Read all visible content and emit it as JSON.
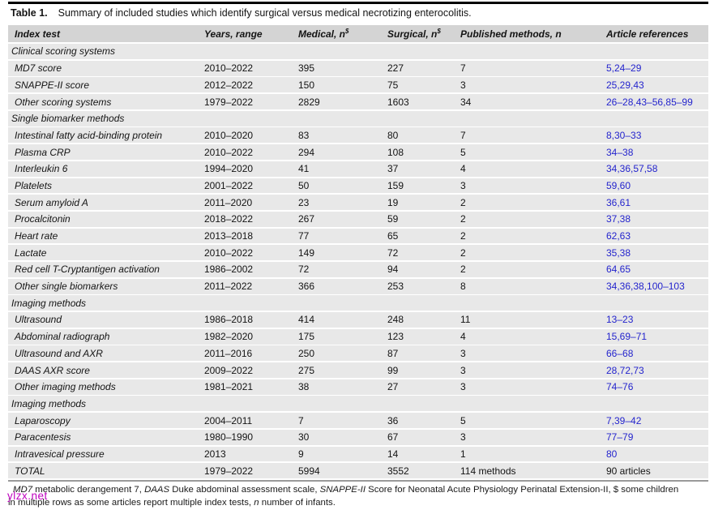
{
  "page": {
    "title_label": "Table 1.",
    "title_text": "Summary of included studies which identify surgical versus medical necrotizing enterocolitis.",
    "watermark": "ylzx.net"
  },
  "colors": {
    "header_bg": "#d4d4d4",
    "row_bg": "#e8e8e8",
    "reference_link_blue": "#2424cd",
    "watermark_magenta": "#bf00bf"
  },
  "table": {
    "headers": [
      {
        "label": "Index test",
        "sup": ""
      },
      {
        "label": "Years, range",
        "sup": ""
      },
      {
        "label": "Medical, n",
        "sup": "$"
      },
      {
        "label": "Surgical, n",
        "sup": "$"
      },
      {
        "label": "Published methods, n",
        "sup": ""
      },
      {
        "label": "Article references",
        "sup": ""
      }
    ],
    "rows": [
      {
        "type": "section",
        "label": "Clinical scoring systems"
      },
      {
        "type": "data",
        "name": "MD7 score",
        "years": "2010–2022",
        "medical": "395",
        "surgical": "227",
        "methods": "7",
        "refs": "5,24–29"
      },
      {
        "type": "data",
        "name": "SNAPPE-II score",
        "years": "2012–2022",
        "medical": "150",
        "surgical": "75",
        "methods": "3",
        "refs": "25,29,43"
      },
      {
        "type": "data",
        "name": "Other scoring systems",
        "years": "1979–2022",
        "medical": "2829",
        "surgical": "1603",
        "methods": "34",
        "refs": "26–28,43–56,85–99"
      },
      {
        "type": "section",
        "label": "Single biomarker methods"
      },
      {
        "type": "data",
        "name": "Intestinal fatty acid-binding protein",
        "years": "2010–2020",
        "medical": "83",
        "surgical": "80",
        "methods": "7",
        "refs": "8,30–33"
      },
      {
        "type": "data",
        "name": "Plasma CRP",
        "years": "2010–2022",
        "medical": "294",
        "surgical": "108",
        "methods": "5",
        "refs": "34–38"
      },
      {
        "type": "data",
        "name": "Interleukin 6",
        "years": "1994–2020",
        "medical": "41",
        "surgical": "37",
        "methods": "4",
        "refs": "34,36,57,58"
      },
      {
        "type": "data",
        "name": "Platelets",
        "years": "2001–2022",
        "medical": "50",
        "surgical": "159",
        "methods": "3",
        "refs": "59,60"
      },
      {
        "type": "data",
        "name": "Serum amyloid A",
        "years": "2011–2020",
        "medical": "23",
        "surgical": "19",
        "methods": "2",
        "refs": "36,61"
      },
      {
        "type": "data",
        "name": "Procalcitonin",
        "years": "2018–2022",
        "medical": "267",
        "surgical": "59",
        "methods": "2",
        "refs": "37,38"
      },
      {
        "type": "data",
        "name": "Heart rate",
        "years": "2013–2018",
        "medical": "77",
        "surgical": "65",
        "methods": "2",
        "refs": "62,63"
      },
      {
        "type": "data",
        "name": "Lactate",
        "years": "2010–2022",
        "medical": "149",
        "surgical": "72",
        "methods": "2",
        "refs": "35,38"
      },
      {
        "type": "data",
        "name": "Red cell T-Cryptantigen activation",
        "years": "1986–2002",
        "medical": "72",
        "surgical": "94",
        "methods": "2",
        "refs": "64,65"
      },
      {
        "type": "data",
        "name": "Other single biomarkers",
        "years": "2011–2022",
        "medical": "366",
        "surgical": "253",
        "methods": "8",
        "refs": "34,36,38,100–103"
      },
      {
        "type": "section",
        "label": "Imaging methods"
      },
      {
        "type": "data",
        "name": "Ultrasound",
        "years": "1986–2018",
        "medical": "414",
        "surgical": "248",
        "methods": "11",
        "refs": "13–23"
      },
      {
        "type": "data",
        "name": "Abdominal radiograph",
        "years": "1982–2020",
        "medical": "175",
        "surgical": "123",
        "methods": "4",
        "refs": "15,69–71"
      },
      {
        "type": "data",
        "name": "Ultrasound and AXR",
        "years": "2011–2016",
        "medical": "250",
        "surgical": "87",
        "methods": "3",
        "refs": "66–68"
      },
      {
        "type": "data",
        "name": "DAAS AXR score",
        "years": "2009–2022",
        "medical": "275",
        "surgical": "99",
        "methods": "3",
        "refs": "28,72,73"
      },
      {
        "type": "data",
        "name": "Other imaging methods",
        "years": "1981–2021",
        "medical": "38",
        "surgical": "27",
        "methods": "3",
        "refs": "74–76"
      },
      {
        "type": "section",
        "label": "Imaging methods"
      },
      {
        "type": "data",
        "name": "Laparoscopy",
        "years": "2004–2011",
        "medical": "7",
        "surgical": "36",
        "methods": "5",
        "refs": "7,39–42"
      },
      {
        "type": "data",
        "name": "Paracentesis",
        "years": "1980–1990",
        "medical": "30",
        "surgical": "67",
        "methods": "3",
        "refs": "77–79"
      },
      {
        "type": "data",
        "name": "Intravesical pressure",
        "years": "2013",
        "medical": "9",
        "surgical": "14",
        "methods": "1",
        "refs": "80"
      },
      {
        "type": "total",
        "name": "TOTAL",
        "years": "1979–2022",
        "medical": "5994",
        "surgical": "3552",
        "methods": "114 methods",
        "refs": "90 articles"
      }
    ]
  },
  "footnote": {
    "lines": [
      {
        "segments": [
          {
            "text": "MD7",
            "italic": true
          },
          {
            "text": " metabolic derangement 7, ",
            "italic": false
          },
          {
            "text": "DAAS",
            "italic": true
          },
          {
            "text": " Duke abdominal assessment scale, ",
            "italic": false
          },
          {
            "text": "SNAPPE-II",
            "italic": true
          },
          {
            "text": " Score for Neonatal Acute Physiology Perinatal Extension-II, $ some children",
            "italic": false
          }
        ]
      },
      {
        "segments": [
          {
            "text": "in multiple rows as some articles report multiple index tests, ",
            "italic": false
          },
          {
            "text": "n",
            "italic": true
          },
          {
            "text": " number of infants.",
            "italic": false
          }
        ]
      }
    ]
  }
}
